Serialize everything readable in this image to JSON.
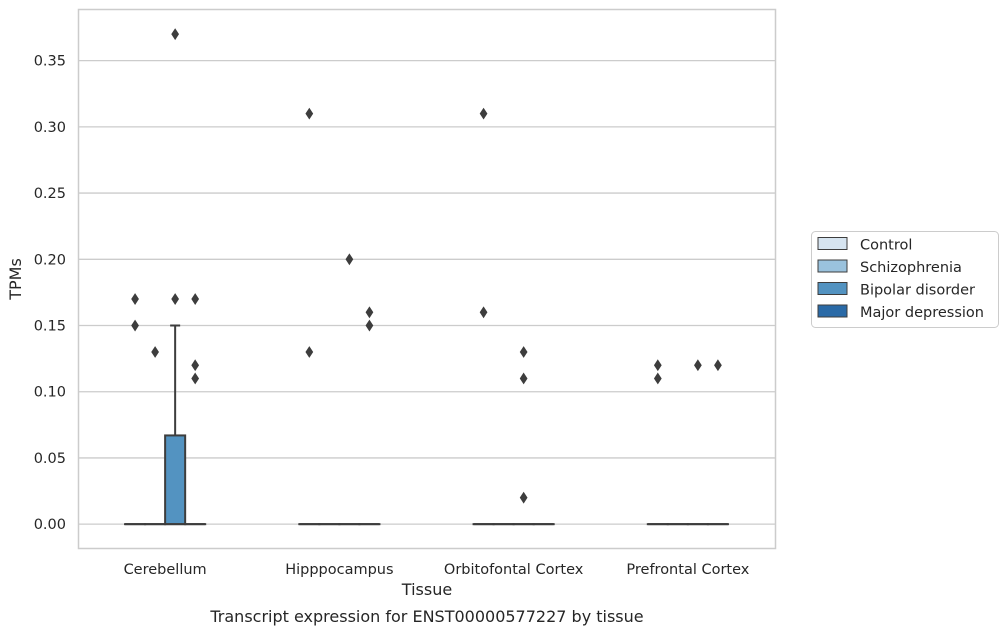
{
  "chart_data": {
    "type": "box",
    "caption": "Transcript expression for ENST00000577227 by tissue",
    "xlabel": "Tissue",
    "ylabel": "TPMs",
    "ylim": [
      -0.018,
      0.389
    ],
    "yticks": [
      0.0,
      0.05,
      0.1,
      0.15,
      0.2,
      0.25,
      0.3,
      0.35
    ],
    "ytick_labels": [
      "0.00",
      "0.05",
      "0.10",
      "0.15",
      "0.20",
      "0.25",
      "0.30",
      "0.35"
    ],
    "grid": "horizontal",
    "legend_position": "right",
    "categories": [
      "Cerebellum",
      "Hipppocampus",
      "Orbitofontal Cortex",
      "Prefrontal Cortex"
    ],
    "series": [
      {
        "name": "Control",
        "color": "#d6e4f0",
        "boxes": [
          {
            "q1": 0,
            "median": 0,
            "q3": 0,
            "whisker_low": 0,
            "whisker_high": 0,
            "outliers": [
              0.17,
              0.15
            ]
          },
          {
            "q1": 0,
            "median": 0,
            "q3": 0,
            "whisker_low": 0,
            "whisker_high": 0,
            "outliers": [
              0.31,
              0.13
            ]
          },
          {
            "q1": 0,
            "median": 0,
            "q3": 0,
            "whisker_low": 0,
            "whisker_high": 0,
            "outliers": [
              0.31,
              0.16
            ]
          },
          {
            "q1": 0,
            "median": 0,
            "q3": 0,
            "whisker_low": 0,
            "whisker_high": 0,
            "outliers": [
              0.12,
              0.11
            ]
          }
        ]
      },
      {
        "name": "Schizophrenia",
        "color": "#9ac2dd",
        "boxes": [
          {
            "q1": 0,
            "median": 0,
            "q3": 0,
            "whisker_low": 0,
            "whisker_high": 0,
            "outliers": [
              0.13
            ]
          },
          {
            "q1": 0,
            "median": 0,
            "q3": 0,
            "whisker_low": 0,
            "whisker_high": 0,
            "outliers": []
          },
          {
            "q1": 0,
            "median": 0,
            "q3": 0,
            "whisker_low": 0,
            "whisker_high": 0,
            "outliers": []
          },
          {
            "q1": 0,
            "median": 0,
            "q3": 0,
            "whisker_low": 0,
            "whisker_high": 0,
            "outliers": []
          }
        ]
      },
      {
        "name": "Bipolar disorder",
        "color": "#5393c1",
        "boxes": [
          {
            "q1": 0,
            "median": 0,
            "q3": 0.067,
            "whisker_low": 0,
            "whisker_high": 0.15,
            "outliers": [
              0.37,
              0.17
            ]
          },
          {
            "q1": 0,
            "median": 0,
            "q3": 0,
            "whisker_low": 0,
            "whisker_high": 0,
            "outliers": [
              0.2
            ]
          },
          {
            "q1": 0,
            "median": 0,
            "q3": 0,
            "whisker_low": 0,
            "whisker_high": 0,
            "outliers": [
              0.13,
              0.11,
              0.02
            ]
          },
          {
            "q1": 0,
            "median": 0,
            "q3": 0,
            "whisker_low": 0,
            "whisker_high": 0,
            "outliers": [
              0.12
            ]
          }
        ]
      },
      {
        "name": "Major depression",
        "color": "#2a6aa7",
        "boxes": [
          {
            "q1": 0,
            "median": 0,
            "q3": 0,
            "whisker_low": 0,
            "whisker_high": 0,
            "outliers": [
              0.17,
              0.12,
              0.11
            ]
          },
          {
            "q1": 0,
            "median": 0,
            "q3": 0,
            "whisker_low": 0,
            "whisker_high": 0,
            "outliers": [
              0.16,
              0.15
            ]
          },
          {
            "q1": 0,
            "median": 0,
            "q3": 0,
            "whisker_low": 0,
            "whisker_high": 0,
            "outliers": []
          },
          {
            "q1": 0,
            "median": 0,
            "q3": 0,
            "whisker_low": 0,
            "whisker_high": 0,
            "outliers": [
              0.12
            ]
          }
        ]
      }
    ]
  }
}
